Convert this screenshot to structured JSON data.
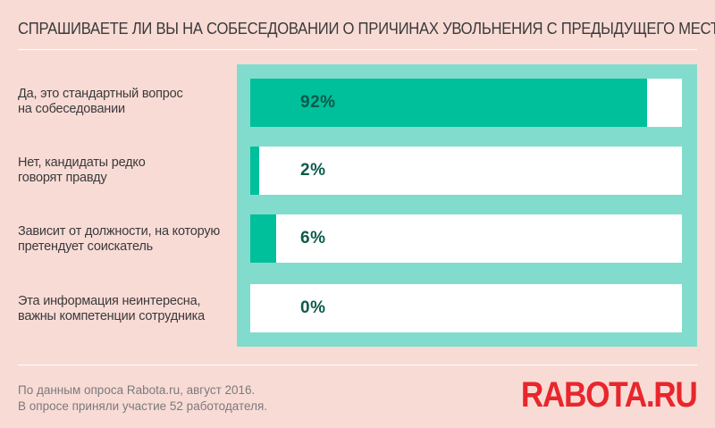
{
  "chart_data": {
    "type": "bar",
    "orientation": "horizontal",
    "title": "СПРАШИВАЕТЕ ЛИ ВЫ НА СОБЕСЕДОВАНИИ О ПРИЧИНАХ УВОЛЬНЕНИЯ С ПРЕДЫДУЩЕГО МЕСТА?",
    "categories": [
      "Да, это стандартный вопрос на собеседовании",
      "Нет, кандидаты редко говорят правду",
      "Зависит от должности, на которую претендует соискатель",
      "Эта информация неинтересна, важны компетенции сотрудника"
    ],
    "label_lines": [
      [
        "Да, это стандартный вопрос",
        "на собеседовании"
      ],
      [
        "Нет, кандидаты редко",
        "говорят правду"
      ],
      [
        "Зависит от должности, на которую",
        "претендует соискатель"
      ],
      [
        "Эта информация неинтересна,",
        "важны компетенции сотрудника"
      ]
    ],
    "values": [
      92,
      2,
      6,
      0
    ],
    "value_labels": [
      "92%",
      "2%",
      "6%",
      "0%"
    ],
    "unit": "%",
    "xlim": [
      0,
      100
    ]
  },
  "colors": {
    "background": "#f9dbd6",
    "panel": "#82dccd",
    "bar_fill": "#00bf9b",
    "value_text": "#0c5a4b",
    "logo": "#e8262c"
  },
  "footnote": {
    "line1": "По данным опроса Rabota.ru, август 2016.",
    "line2": "В опросе приняли участие 52 работодателя."
  },
  "logo": {
    "text": "RABOTA.RU"
  }
}
